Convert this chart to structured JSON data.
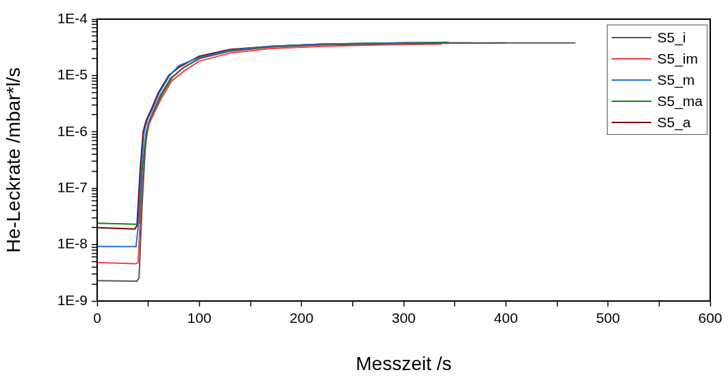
{
  "chart_data": {
    "type": "line",
    "xlabel": "Messzeit /s",
    "ylabel": "He-Leckrate /mbar*l/s",
    "log": "y",
    "grid": false,
    "legend": "top right",
    "marker": "none",
    "line_style": "solid",
    "xlim": [
      0,
      600
    ],
    "xticks": [
      0,
      {
        "value": 50,
        "label": null
      },
      100,
      {
        "value": 150,
        "label": null
      },
      200,
      {
        "value": 250,
        "label": null
      },
      300,
      {
        "value": 350,
        "label": null
      },
      400,
      {
        "value": 450,
        "label": null
      },
      500,
      {
        "value": 550,
        "label": null
      },
      600
    ],
    "ylim": [
      1e-09,
      0.0001
    ],
    "yticks": [
      {
        "value": 1e-09,
        "label": "1E-9"
      },
      {
        "value": 2e-09,
        "label": null
      },
      {
        "value": 3e-09,
        "label": null
      },
      {
        "value": 4e-09,
        "label": null
      },
      {
        "value": 5e-09,
        "label": null
      },
      {
        "value": 6e-09,
        "label": null
      },
      {
        "value": 7e-09,
        "label": null
      },
      {
        "value": 8e-09,
        "label": null
      },
      {
        "value": 9e-09,
        "label": null
      },
      {
        "value": 1e-08,
        "label": "1E-8"
      },
      {
        "value": 2e-08,
        "label": null
      },
      {
        "value": 3e-08,
        "label": null
      },
      {
        "value": 4e-08,
        "label": null
      },
      {
        "value": 5e-08,
        "label": null
      },
      {
        "value": 6e-08,
        "label": null
      },
      {
        "value": 7e-08,
        "label": null
      },
      {
        "value": 8e-08,
        "label": null
      },
      {
        "value": 9e-08,
        "label": null
      },
      {
        "value": 1e-07,
        "label": "1E-7"
      },
      {
        "value": 2e-07,
        "label": null
      },
      {
        "value": 3e-07,
        "label": null
      },
      {
        "value": 4e-07,
        "label": null
      },
      {
        "value": 5e-07,
        "label": null
      },
      {
        "value": 6e-07,
        "label": null
      },
      {
        "value": 7e-07,
        "label": null
      },
      {
        "value": 8e-07,
        "label": null
      },
      {
        "value": 9e-07,
        "label": null
      },
      {
        "value": 1e-06,
        "label": "1E-6"
      },
      {
        "value": 2e-06,
        "label": null
      },
      {
        "value": 3e-06,
        "label": null
      },
      {
        "value": 4e-06,
        "label": null
      },
      {
        "value": 5e-06,
        "label": null
      },
      {
        "value": 6e-06,
        "label": null
      },
      {
        "value": 7e-06,
        "label": null
      },
      {
        "value": 8e-06,
        "label": null
      },
      {
        "value": 9e-06,
        "label": null
      },
      {
        "value": 1e-05,
        "label": "1E-5"
      },
      {
        "value": 2e-05,
        "label": null
      },
      {
        "value": 3e-05,
        "label": null
      },
      {
        "value": 4e-05,
        "label": null
      },
      {
        "value": 5e-05,
        "label": null
      },
      {
        "value": 6e-05,
        "label": null
      },
      {
        "value": 7e-05,
        "label": null
      },
      {
        "value": 8e-05,
        "label": null
      },
      {
        "value": 9e-05,
        "label": null
      },
      {
        "value": 0.0001,
        "label": "1E-4"
      }
    ],
    "series": [
      {
        "name": "S5_i",
        "color": "#555555",
        "x": [
          0,
          39,
          41,
          44,
          47,
          50,
          55,
          62,
          72,
          85,
          100,
          130,
          170,
          220,
          300,
          400,
          468
        ],
        "values": [
          2.3e-09,
          2.25e-09,
          2.6e-09,
          5e-08,
          5e-07,
          1.4e-06,
          2.3e-06,
          4.5e-06,
          9e-06,
          1.4e-05,
          2e-05,
          2.7e-05,
          3.2e-05,
          3.5e-05,
          3.7e-05,
          3.8e-05,
          3.8e-05
        ]
      },
      {
        "name": "S5_im",
        "color": "#f04040",
        "x": [
          0,
          38,
          40,
          44,
          48,
          51,
          56,
          63,
          73,
          85,
          100,
          130,
          170,
          220,
          280,
          337
        ],
        "values": [
          4.8e-09,
          4.6e-09,
          4.8e-09,
          1e-07,
          8e-07,
          1.4e-06,
          2.2e-06,
          4e-06,
          8e-06,
          1.2e-05,
          1.8e-05,
          2.5e-05,
          3e-05,
          3.3e-05,
          3.5e-05,
          3.6e-05
        ]
      },
      {
        "name": "S5_m",
        "color": "#1f6fdf",
        "x": [
          0,
          38,
          40,
          43,
          46,
          49,
          54,
          61,
          71,
          80,
          100,
          130,
          170,
          220,
          300,
          400
        ],
        "values": [
          9.3e-09,
          9.2e-09,
          2e-08,
          2e-07,
          1e-06,
          1.6e-06,
          2.5e-06,
          5e-06,
          1e-05,
          1.5e-05,
          2.1e-05,
          2.8e-05,
          3.3e-05,
          3.6e-05,
          3.8e-05,
          3.8e-05
        ]
      },
      {
        "name": "S5_ma",
        "color": "#0a8a0a",
        "x": [
          0,
          38,
          41,
          44,
          48,
          51,
          56,
          63,
          73,
          85,
          100,
          130,
          170,
          220,
          290,
          344
        ],
        "values": [
          2.4e-08,
          2.3e-08,
          2.4e-08,
          2e-07,
          1e-06,
          1.5e-06,
          2.3e-06,
          4.5e-06,
          9e-06,
          1.4e-05,
          2e-05,
          2.8e-05,
          3.3e-05,
          3.6e-05,
          3.8e-05,
          3.9e-05
        ]
      },
      {
        "name": "S5_a",
        "color": "#7a0000",
        "x": [
          0,
          37,
          39,
          42,
          45,
          48,
          53,
          60,
          70,
          80,
          100,
          130,
          170,
          220,
          300,
          366
        ],
        "values": [
          2e-08,
          1.9e-08,
          2.2e-08,
          2e-07,
          1e-06,
          1.6e-06,
          2.5e-06,
          5e-06,
          1e-05,
          1.4e-05,
          2.2e-05,
          2.9e-05,
          3.3e-05,
          3.6e-05,
          3.8e-05,
          3.8e-05
        ]
      }
    ]
  }
}
